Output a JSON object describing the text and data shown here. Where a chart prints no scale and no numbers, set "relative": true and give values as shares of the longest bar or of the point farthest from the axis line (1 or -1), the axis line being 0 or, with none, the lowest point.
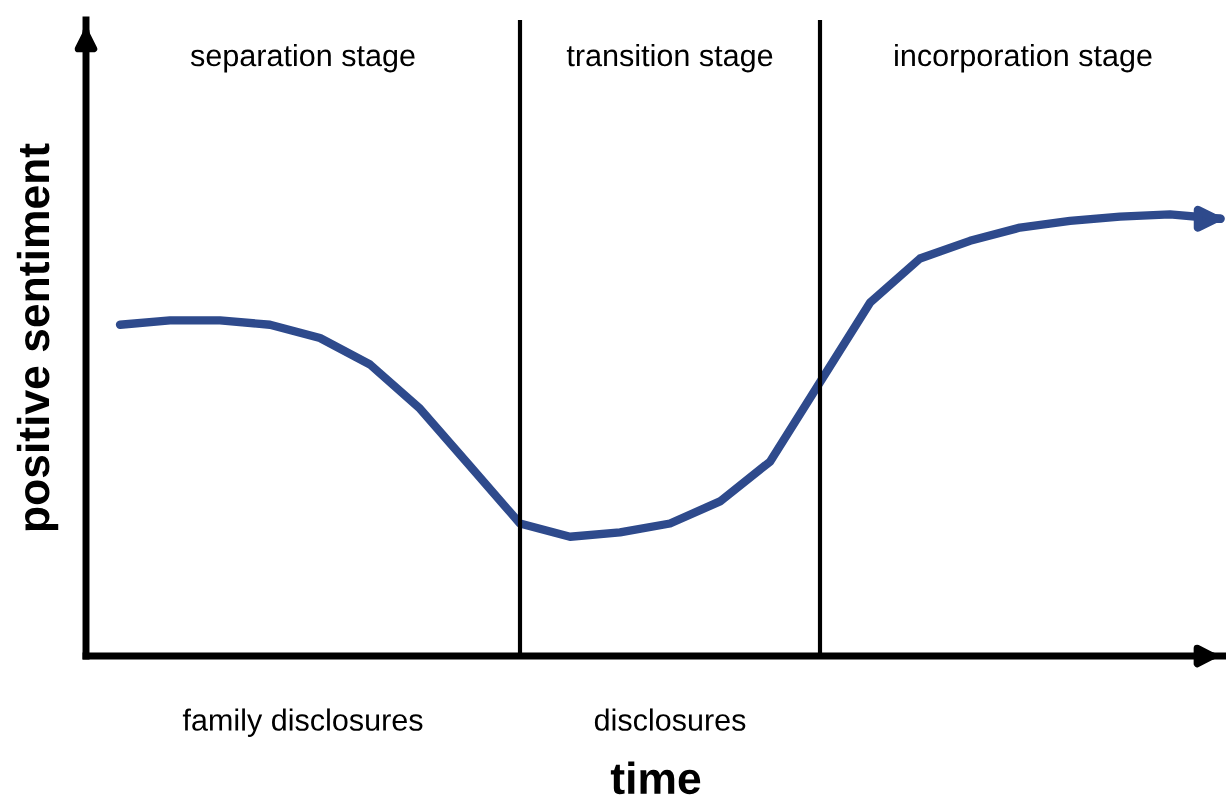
{
  "chart_data": {
    "type": "line",
    "relative": true,
    "xlabel": "time",
    "ylabel": "positive sentiment",
    "categories": [
      null,
      null,
      null,
      null,
      null,
      null,
      null,
      null,
      null,
      null,
      null,
      null,
      null,
      null,
      null,
      null,
      null,
      null,
      null,
      null,
      null,
      null,
      null
    ],
    "tick_labels": false,
    "legend": false,
    "marker": "none",
    "line_style": "solid",
    "series": [
      {
        "color": "#2e4a8c",
        "values": [
          0.75,
          0.76,
          0.76,
          0.75,
          0.72,
          0.66,
          0.56,
          0.43,
          0.3,
          0.27,
          0.28,
          0.3,
          0.35,
          0.44,
          0.62,
          0.8,
          0.9,
          0.94,
          0.97,
          0.985,
          0.995,
          1.0,
          0.99
        ]
      }
    ],
    "annotations": [
      "separation stage",
      "transition stage",
      "incorporation stage",
      "family disclosures",
      "disclosures"
    ]
  }
}
